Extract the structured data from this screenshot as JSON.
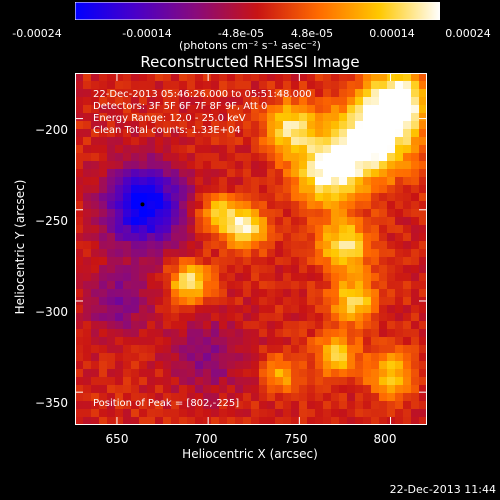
{
  "colorbar": {
    "ticks": [
      "-0.00024",
      "-0.00014",
      "-4.8e-05",
      "4.8e-05",
      "0.00014",
      "0.00024"
    ],
    "units": "(photons cm⁻² s⁻¹ asec⁻²)",
    "colors": [
      "#0000ff",
      "#4a00c8",
      "#8a0a7a",
      "#c81414",
      "#ff6a00",
      "#ffc800",
      "#ffffff"
    ]
  },
  "chart_data": {
    "type": "heatmap",
    "title": "Reconstructed RHESSI Image",
    "xlabel": "Heliocentric X (arcsec)",
    "ylabel": "Heliocentric Y (arcsec)",
    "xlim": [
      627,
      820
    ],
    "ylim": [
      -368,
      -175
    ],
    "x_ticks": [
      650,
      700,
      750,
      800
    ],
    "y_ticks": [
      -200,
      -250,
      -300,
      -350
    ],
    "x_tick_labels": [
      "650",
      "700",
      "750",
      "800"
    ],
    "y_tick_labels": [
      "−200",
      "−250",
      "−300",
      "−350"
    ],
    "value_range": [
      -0.00024,
      0.00024
    ],
    "peak": [
      802,
      -225
    ],
    "minimum_marker": [
      664,
      -247
    ],
    "annotations": [
      "22-Dec-2013 05:46:26.000 to 05:51:48.000",
      "Detectors: 3F 5F 6F 7F 8F 9F, Att 0",
      "Energy Range: 12.0 - 25.0 keV",
      "Clean     Total counts: 1.33E+04"
    ],
    "peak_label": "Position of Peak = [802,-225]",
    "sources": [
      {
        "x": 790,
        "y": -210,
        "radius": 22,
        "amp": 1.0
      },
      {
        "x": 805,
        "y": -190,
        "radius": 16,
        "amp": 0.9
      },
      {
        "x": 765,
        "y": -230,
        "radius": 18,
        "amp": 0.85
      },
      {
        "x": 745,
        "y": -205,
        "radius": 14,
        "amp": 0.7
      },
      {
        "x": 720,
        "y": -260,
        "radius": 12,
        "amp": 0.75
      },
      {
        "x": 705,
        "y": -252,
        "radius": 10,
        "amp": 0.6
      },
      {
        "x": 690,
        "y": -290,
        "radius": 11,
        "amp": 0.75
      },
      {
        "x": 775,
        "y": -270,
        "radius": 14,
        "amp": 0.75
      },
      {
        "x": 780,
        "y": -300,
        "radius": 12,
        "amp": 0.7
      },
      {
        "x": 770,
        "y": -330,
        "radius": 12,
        "amp": 0.6
      },
      {
        "x": 800,
        "y": -340,
        "radius": 13,
        "amp": 0.55
      },
      {
        "x": 740,
        "y": -340,
        "radius": 9,
        "amp": 0.5
      },
      {
        "x": 665,
        "y": -248,
        "radius": 22,
        "amp": -1.0
      },
      {
        "x": 650,
        "y": -300,
        "radius": 18,
        "amp": -0.4
      },
      {
        "x": 700,
        "y": -330,
        "radius": 20,
        "amp": -0.35
      }
    ]
  },
  "timestamp": "22-Dec-2013 11:44"
}
